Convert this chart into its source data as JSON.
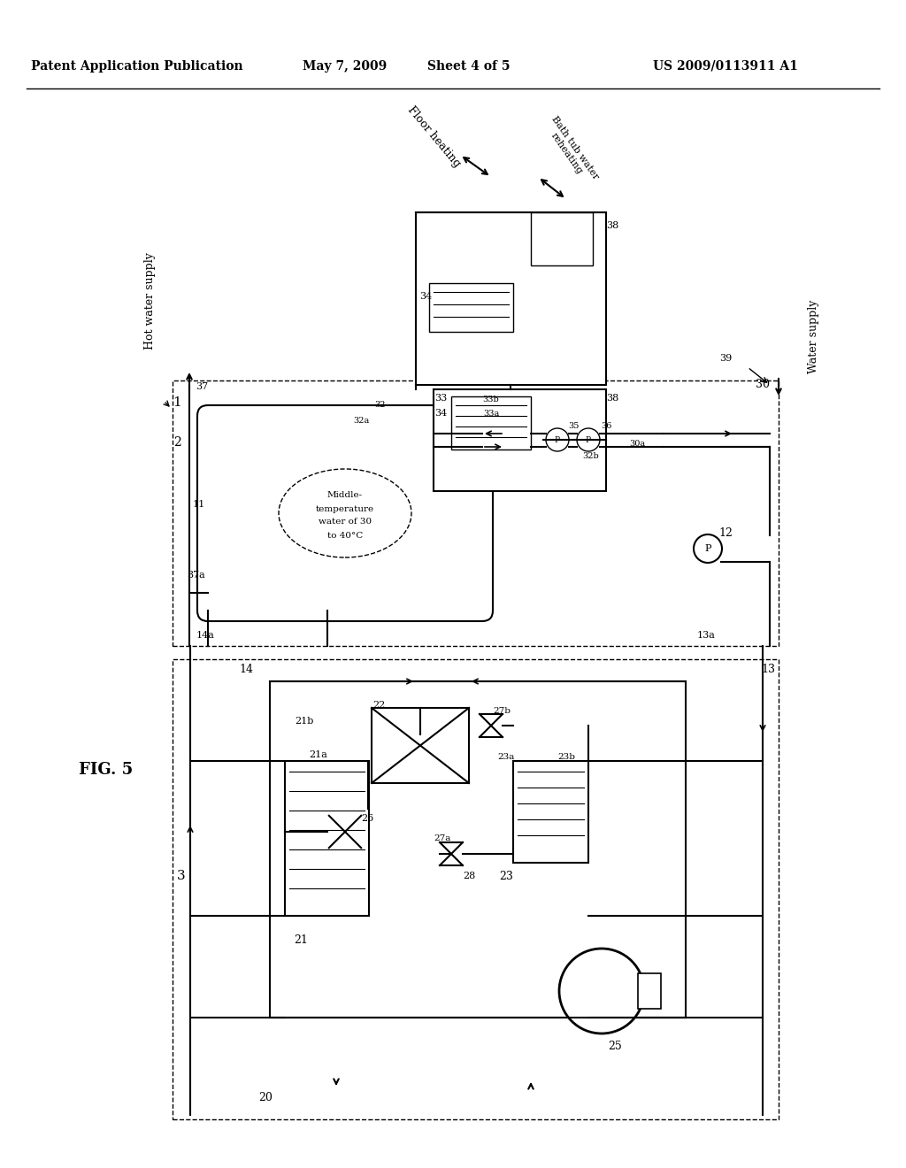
{
  "bg_color": "#ffffff",
  "header_text": "Patent Application Publication",
  "header_date": "May 7, 2009",
  "header_sheet": "Sheet 4 of 5",
  "header_patent": "US 2009/0113911 A1",
  "fig_label": "FIG. 5",
  "line_color": "#000000",
  "dashed_color": "#000000"
}
